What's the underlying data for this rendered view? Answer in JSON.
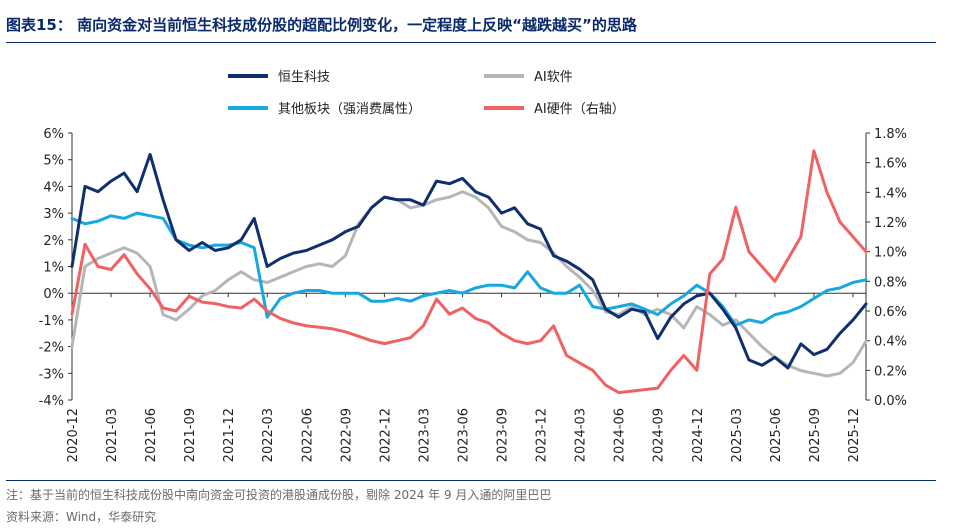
{
  "title": "图表15： 南向资金对当前恒生科技成份股的超配比例变化，一定程度上反映“越跌越买”的思路",
  "notes": {
    "note": "注：基于当前的恒生科技成份股中南向资金可投资的港股通成份股，剔除 2024 年 9 月入通的阿里巴巴",
    "source": "资料来源：Wind，华泰研究"
  },
  "chart_data": {
    "type": "line",
    "x": [
      "2020-12",
      "2021-01",
      "2021-02",
      "2021-03",
      "2021-04",
      "2021-05",
      "2021-06",
      "2021-07",
      "2021-08",
      "2021-09",
      "2021-10",
      "2021-11",
      "2021-12",
      "2022-01",
      "2022-02",
      "2022-03",
      "2022-04",
      "2022-05",
      "2022-06",
      "2022-07",
      "2022-08",
      "2022-09",
      "2022-10",
      "2022-11",
      "2022-12",
      "2023-01",
      "2023-02",
      "2023-03",
      "2023-04",
      "2023-05",
      "2023-06",
      "2023-07",
      "2023-08",
      "2023-09",
      "2023-10",
      "2023-11",
      "2023-12",
      "2024-01",
      "2024-02",
      "2024-03",
      "2024-04",
      "2024-05",
      "2024-06",
      "2024-07",
      "2024-08",
      "2024-09",
      "2024-10",
      "2024-11",
      "2024-12",
      "2025-01",
      "2025-02",
      "2025-03",
      "2025-04",
      "2025-05",
      "2025-06",
      "2025-07",
      "2025-08",
      "2025-09",
      "2025-10",
      "2025-11",
      "2025-12",
      "2026-01"
    ],
    "x_tick_labels": [
      "2020-12",
      "2021-03",
      "2021-06",
      "2021-09",
      "2021-12",
      "2022-03",
      "2022-06",
      "2022-09",
      "2022-12",
      "2023-03",
      "2023-06",
      "2023-09",
      "2023-12",
      "2024-03",
      "2024-06",
      "2024-09",
      "2024-12",
      "2025-03",
      "2025-06",
      "2025-09",
      "2025-12"
    ],
    "y_left": {
      "ticks": [
        "6%",
        "5%",
        "4%",
        "3%",
        "2%",
        "1%",
        "0%",
        "-1%",
        "-2%",
        "-3%",
        "-4%"
      ],
      "range": [
        -4,
        6
      ]
    },
    "y_right": {
      "ticks": [
        "1.8%",
        "1.6%",
        "1.4%",
        "1.2%",
        "1.0%",
        "0.8%",
        "0.6%",
        "0.4%",
        "0.2%",
        "0.0%"
      ],
      "range": [
        0,
        1.8
      ]
    },
    "legend": "top-center",
    "grid": false,
    "series": [
      {
        "name": "恒生科技",
        "color": "#0f2f6e",
        "axis": "left",
        "width": 3,
        "values": [
          1.0,
          4.0,
          3.8,
          4.2,
          4.5,
          3.8,
          5.2,
          3.5,
          2.0,
          1.6,
          1.9,
          1.6,
          1.7,
          2.0,
          2.8,
          1.0,
          1.3,
          1.5,
          1.6,
          1.8,
          2.0,
          2.3,
          2.5,
          3.2,
          3.6,
          3.5,
          3.5,
          3.3,
          4.2,
          4.1,
          4.3,
          3.8,
          3.6,
          3.0,
          3.2,
          2.6,
          2.4,
          1.4,
          1.2,
          0.9,
          0.5,
          -0.6,
          -0.9,
          -0.6,
          -0.7,
          -1.7,
          -0.9,
          -0.4,
          -0.1,
          0.0,
          -0.6,
          -1.3,
          -2.5,
          -2.7,
          -2.4,
          -2.8,
          -1.9,
          -2.3,
          -2.1,
          -1.5,
          -1.0,
          -0.4
        ]
      },
      {
        "name": "AI软件",
        "color": "#b6b6b6",
        "axis": "left",
        "width": 3,
        "values": [
          -2.0,
          1.0,
          1.3,
          1.5,
          1.7,
          1.5,
          1.0,
          -0.8,
          -1.0,
          -0.6,
          -0.1,
          0.1,
          0.5,
          0.8,
          0.5,
          0.4,
          0.6,
          0.8,
          1.0,
          1.1,
          1.0,
          1.4,
          2.6,
          3.2,
          3.6,
          3.5,
          3.2,
          3.3,
          3.5,
          3.6,
          3.8,
          3.6,
          3.2,
          2.5,
          2.3,
          2.0,
          1.9,
          1.5,
          1.0,
          0.6,
          0.1,
          -0.7,
          -0.8,
          -0.5,
          -0.8,
          -0.6,
          -0.8,
          -1.3,
          -0.5,
          -0.8,
          -1.2,
          -1.0,
          -1.5,
          -2.0,
          -2.4,
          -2.7,
          -2.9,
          -3.0,
          -3.1,
          -3.0,
          -2.6,
          -1.8
        ]
      },
      {
        "name": "其他板块（强消费属性）",
        "color": "#16a8e0",
        "axis": "left",
        "width": 3,
        "values": [
          2.8,
          2.6,
          2.7,
          2.9,
          2.8,
          3.0,
          2.9,
          2.8,
          2.0,
          1.8,
          1.7,
          1.8,
          1.8,
          1.9,
          1.7,
          -0.9,
          -0.2,
          0.0,
          0.1,
          0.1,
          0.0,
          0.0,
          0.0,
          -0.3,
          -0.3,
          -0.2,
          -0.3,
          -0.1,
          0.0,
          0.1,
          0.0,
          0.2,
          0.3,
          0.3,
          0.2,
          0.8,
          0.2,
          0.0,
          0.0,
          0.3,
          -0.5,
          -0.6,
          -0.5,
          -0.4,
          -0.6,
          -0.8,
          -0.4,
          -0.1,
          0.3,
          0.0,
          -0.5,
          -1.2,
          -1.0,
          -1.1,
          -0.8,
          -0.7,
          -0.5,
          -0.2,
          0.1,
          0.2,
          0.4,
          0.5
        ]
      },
      {
        "name": "AI硬件（右轴）",
        "color": "#f06262",
        "axis": "right",
        "width": 3,
        "values": [
          0.58,
          1.05,
          0.9,
          0.88,
          0.98,
          0.85,
          0.75,
          0.62,
          0.6,
          0.7,
          0.66,
          0.65,
          0.63,
          0.62,
          0.68,
          0.6,
          0.55,
          0.52,
          0.5,
          0.49,
          0.48,
          0.46,
          0.43,
          0.4,
          0.38,
          0.4,
          0.42,
          0.5,
          0.68,
          0.58,
          0.62,
          0.55,
          0.52,
          0.45,
          0.4,
          0.38,
          0.4,
          0.5,
          0.3,
          0.25,
          0.2,
          0.1,
          0.05,
          0.06,
          0.07,
          0.08,
          0.2,
          0.3,
          0.2,
          0.85,
          0.95,
          1.3,
          1.0,
          0.9,
          0.8,
          0.95,
          1.1,
          1.68,
          1.4,
          1.2,
          1.1,
          1.0
        ]
      }
    ]
  }
}
